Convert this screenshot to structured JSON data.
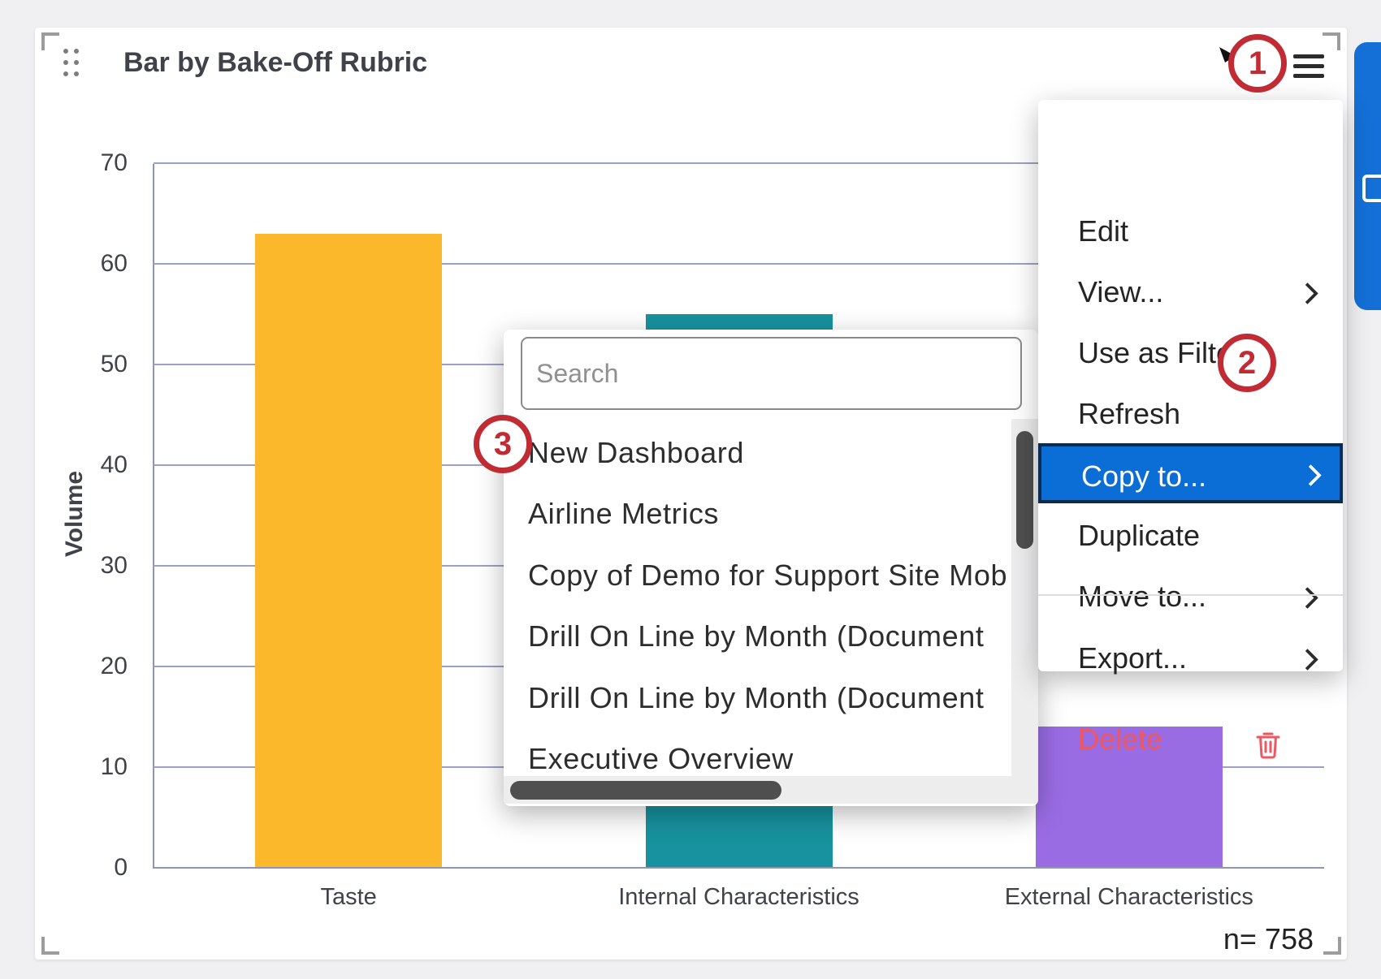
{
  "widget": {
    "title": "Bar by Bake-Off Rubric",
    "sample_size_label": "n= 758"
  },
  "chart_data": {
    "type": "bar",
    "title": "Bar by Bake-Off Rubric",
    "categories": [
      "Taste",
      "Internal Characteristics",
      "External Characteristics"
    ],
    "values": [
      63,
      55,
      14
    ],
    "bar_colors": [
      "#fbb82a",
      "#17929e",
      "#9a6ce4"
    ],
    "xlabel": "",
    "ylabel": "Volume",
    "ylim": [
      0,
      70
    ],
    "yticks": [
      0,
      10,
      20,
      30,
      40,
      50,
      60,
      70
    ],
    "grid": true,
    "legend": "none",
    "sample_size_label": "n= 758"
  },
  "context_menu": {
    "items": [
      {
        "label": "Edit",
        "has_submenu": false,
        "highlighted": false
      },
      {
        "label": "View...",
        "has_submenu": true,
        "highlighted": false
      },
      {
        "label": "Use as Filter",
        "has_submenu": false,
        "highlighted": false
      },
      {
        "label": "Refresh",
        "has_submenu": false,
        "highlighted": false
      },
      {
        "label": "Copy to...",
        "has_submenu": true,
        "highlighted": true
      },
      {
        "label": "Duplicate",
        "has_submenu": false,
        "highlighted": false
      },
      {
        "label": "Move to...",
        "has_submenu": true,
        "highlighted": false
      },
      {
        "label": "Export...",
        "has_submenu": true,
        "highlighted": false
      }
    ],
    "delete_label": "Delete"
  },
  "copy_to_submenu": {
    "search_placeholder": "Search",
    "items": [
      "New Dashboard",
      "Airline Metrics",
      "Copy of Demo for Support Site Mob",
      "Drill On Line by Month (Document",
      "Drill On Line by Month (Document",
      "Executive Overview"
    ]
  },
  "annotations": {
    "step1": "1",
    "step2": "2",
    "step3": "3"
  },
  "colors": {
    "highlight_blue": "#0b6ed6",
    "highlight_border": "#0d2b4b",
    "annotation_red": "#c12b33",
    "delete_red": "#ef5860",
    "side_tab_blue": "#146fd6",
    "gridline": "#9aa1c2"
  }
}
